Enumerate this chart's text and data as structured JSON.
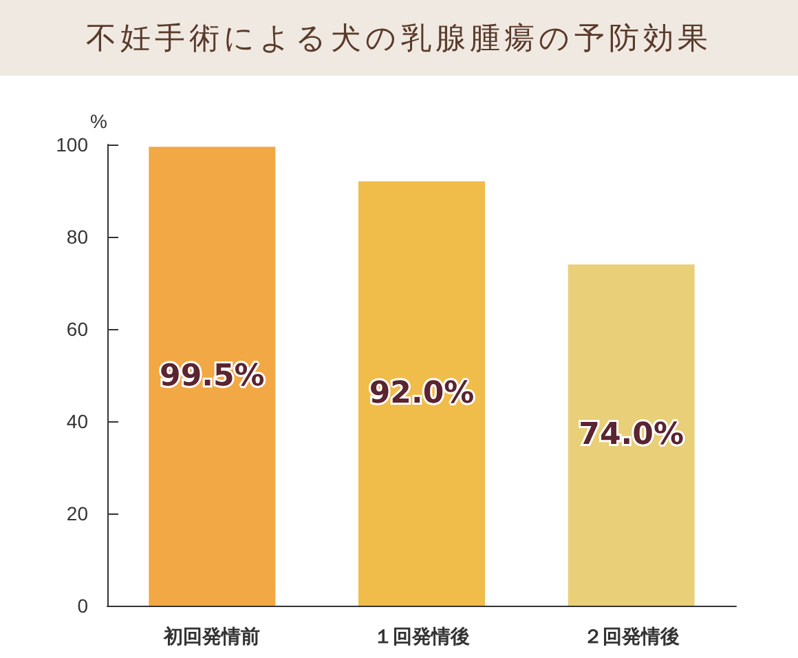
{
  "chart_data": {
    "type": "bar",
    "title": "不妊手術による犬の乳腺腫瘍の予防効果",
    "ylabel": "%",
    "categories": [
      "初回発情前",
      "１回発情後",
      "２回発情後"
    ],
    "values": [
      99.5,
      92.0,
      74.0
    ],
    "colors": [
      "#f2a844",
      "#f0bc4a",
      "#e8cf78"
    ],
    "value_labels": [
      "99.5%",
      "92.0%",
      "74.0%"
    ],
    "ylim": [
      0,
      100
    ],
    "yticks": [
      0,
      20,
      40,
      60,
      80,
      100
    ],
    "grid": false
  }
}
